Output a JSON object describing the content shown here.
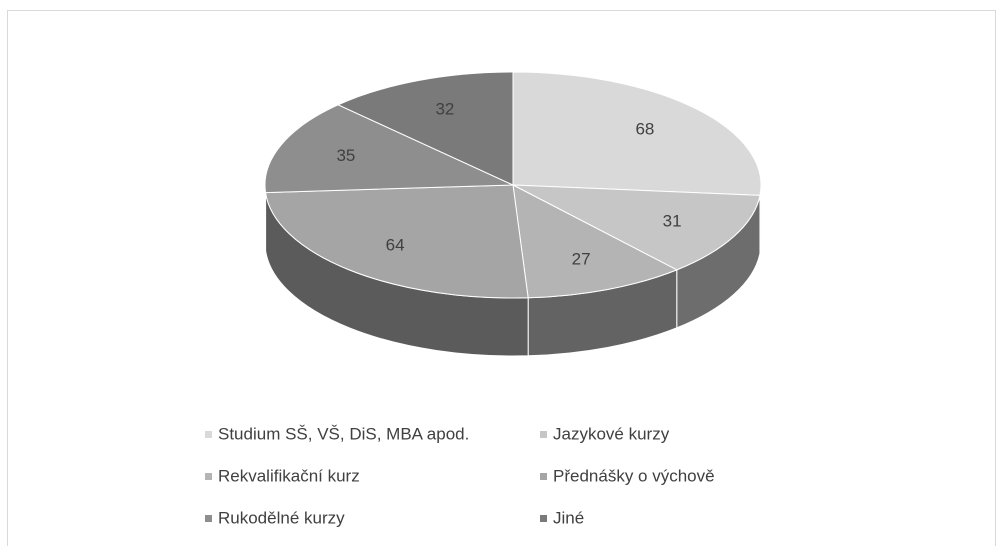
{
  "chart_data": {
    "type": "pie",
    "categories": [
      "Studium SŠ, VŠ, DiS, MBA apod.",
      "Jazykové kurzy",
      "Rekvalifikační kurz",
      "Přednášky o výchově",
      "Rukodělné kurzy",
      "Jiné"
    ],
    "values": [
      68,
      31,
      27,
      64,
      35,
      32
    ],
    "colors": [
      "#d9d9d9",
      "#c6c6c6",
      "#b4b4b4",
      "#a5a5a5",
      "#8e8e8e",
      "#7a7a7a"
    ],
    "legend": "bottom"
  }
}
